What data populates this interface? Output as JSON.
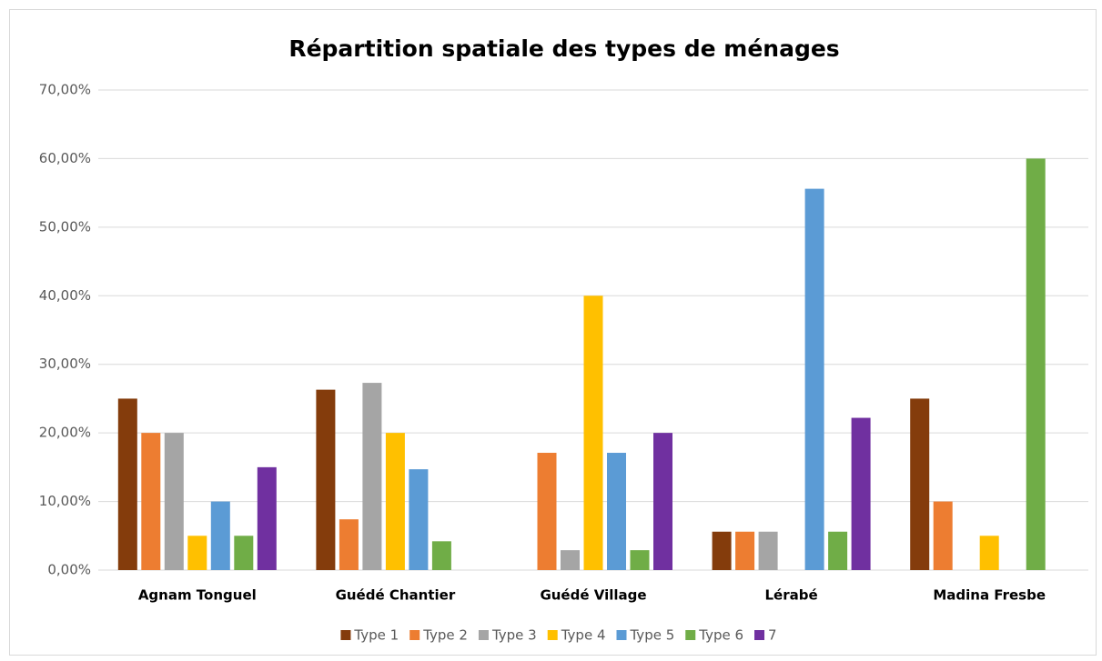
{
  "chart_data": {
    "type": "bar",
    "title": "Répartition spatiale des types de ménages",
    "categories": [
      "Agnam Tonguel",
      "Guédé Chantier",
      "Guédé Village",
      "Lérabé",
      "Madina Fresbe"
    ],
    "series": [
      {
        "name": "Type 1",
        "color": "#843c0c",
        "values": [
          25,
          26.3,
          0,
          5.6,
          25
        ]
      },
      {
        "name": "Type 2",
        "color": "#ed7d31",
        "values": [
          20,
          7.4,
          17.1,
          5.6,
          10
        ]
      },
      {
        "name": "Type 3",
        "color": "#a5a5a5",
        "values": [
          20,
          27.3,
          2.9,
          5.6,
          0
        ]
      },
      {
        "name": "Type 4",
        "color": "#ffc000",
        "values": [
          5,
          20,
          40,
          0,
          5
        ]
      },
      {
        "name": "Type 5",
        "color": "#5b9bd5",
        "values": [
          10,
          14.7,
          17.1,
          55.6,
          0
        ]
      },
      {
        "name": "Type 6",
        "color": "#70ad47",
        "values": [
          5,
          4.2,
          2.9,
          5.6,
          60
        ]
      },
      {
        "name": "7",
        "color": "#7030a0",
        "values": [
          15,
          0,
          20,
          22.2,
          0
        ]
      }
    ],
    "ylim": [
      0,
      70
    ],
    "yticks": [
      {
        "value": 0,
        "label": "0,00%"
      },
      {
        "value": 10,
        "label": "10,00%"
      },
      {
        "value": 20,
        "label": "20,00%"
      },
      {
        "value": 30,
        "label": "30,00%"
      },
      {
        "value": 40,
        "label": "40,00%"
      },
      {
        "value": 50,
        "label": "50,00%"
      },
      {
        "value": 60,
        "label": "60,00%"
      },
      {
        "value": 70,
        "label": "70,00%"
      }
    ],
    "grid": true,
    "legend": "bottom"
  }
}
